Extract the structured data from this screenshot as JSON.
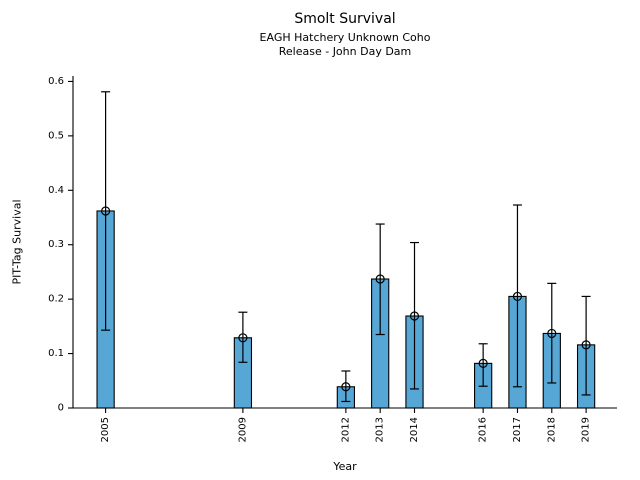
{
  "chart_data": {
    "type": "bar",
    "title": "Smolt Survival",
    "subtitle1": "EAGH Hatchery Unknown Coho",
    "subtitle2": "Release - John Day Dam",
    "xlabel": "Year",
    "ylabel": "PIT-Tag Survival",
    "ylim": [
      0,
      0.6
    ],
    "yticks": [
      0,
      0.1,
      0.2,
      0.3,
      0.4,
      0.5,
      0.6
    ],
    "ytick_labels": [
      "0",
      "0.1",
      "0.2",
      "0.3",
      "0.4",
      "0.5",
      "0.6"
    ],
    "xlim": [
      2004.05,
      2019.9
    ],
    "grid": false,
    "legend": null,
    "marker": "open-circle",
    "bar_width_years": 0.5,
    "categories": [
      2005,
      2009,
      2012,
      2013,
      2014,
      2016,
      2017,
      2018,
      2019
    ],
    "values": [
      0.362,
      0.129,
      0.039,
      0.237,
      0.169,
      0.082,
      0.205,
      0.137,
      0.116
    ],
    "error_low": [
      0.143,
      0.084,
      0.012,
      0.135,
      0.035,
      0.04,
      0.039,
      0.046,
      0.024
    ],
    "error_high": [
      0.581,
      0.176,
      0.068,
      0.338,
      0.304,
      0.118,
      0.373,
      0.229,
      0.205
    ],
    "colors": {
      "bar_fill": "#56a7d6",
      "bar_edge": "#000000",
      "error_bar": "#000000",
      "axis": "#000000",
      "text": "#000000",
      "background": "#ffffff"
    }
  }
}
